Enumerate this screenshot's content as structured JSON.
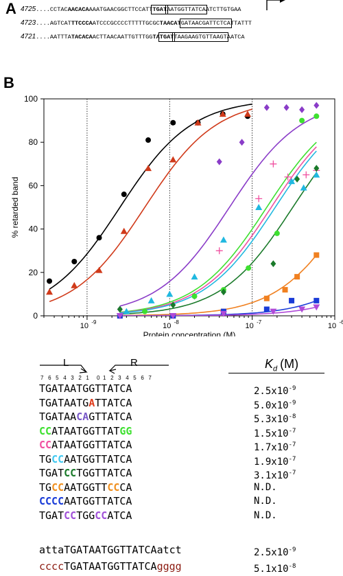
{
  "panel_labels": {
    "a": "A",
    "b": "B"
  },
  "sequences": [
    {
      "name": "4725",
      "dots": "....",
      "parts": [
        {
          "t": "CCTAC"
        },
        {
          "t": "AACACA",
          "bold": true
        },
        {
          "t": "AAATGAACGGCTTCCATT"
        },
        {
          "t": "TGAT",
          "bold": true,
          "box": true
        },
        {
          "t": "AATGGTTATCA",
          "box": true
        },
        {
          "t": "ATCTTGTGAA"
        }
      ]
    },
    {
      "name": "4723",
      "dots": "....",
      "parts": [
        {
          "t": "AGTCAT"
        },
        {
          "t": "TTCCCA",
          "bold": true
        },
        {
          "t": "ATCCCGCCCCTTTTTGCGC"
        },
        {
          "t": "TAACAT",
          "bold": true
        },
        {
          "t": "GATAACGATTCTCA",
          "box": true
        },
        {
          "t": "TTATTT"
        }
      ]
    },
    {
      "name": "4721",
      "dots": "....",
      "parts": [
        {
          "t": "AATTTA"
        },
        {
          "t": "TACACA",
          "bold": true
        },
        {
          "t": "ACTTAACAATTGTTTGG"
        },
        {
          "t": "TA",
          "bold": true
        },
        {
          "t": "TGAT",
          "bold": true,
          "box": true
        },
        {
          "t": "TAAGAAGTGTTAAGT",
          "box": true
        },
        {
          "t": "AATCA"
        }
      ]
    }
  ],
  "chart_data": {
    "type": "scatter",
    "xlabel": "Protein concentration (M)",
    "ylabel": "% retarded band",
    "xscale": "log",
    "xlim": [
      3e-10,
      1e-06
    ],
    "ylim": [
      0,
      100
    ],
    "xticks": [
      "10",
      "10",
      "10",
      "10"
    ],
    "xtick_exps": [
      "-9",
      "-8",
      "-7",
      "-6"
    ],
    "yticks": [
      "0",
      "20",
      "40",
      "60",
      "80",
      "100"
    ],
    "vlines": [
      1e-09,
      1e-08,
      1e-07
    ],
    "series": [
      {
        "color": "#000000",
        "marker": "circle",
        "kd": 2.5e-09,
        "curve": [
          3.5e-10,
          1e-07
        ],
        "x": [
          3.5e-10,
          7e-10,
          1.4e-09,
          2.8e-09,
          5.5e-09,
          1.1e-08,
          2.2e-08,
          4.4e-08,
          8.8e-08
        ],
        "y": [
          16,
          25,
          36,
          56,
          81,
          89,
          89,
          93,
          92
        ]
      },
      {
        "color": "#d03a1a",
        "marker": "triangle",
        "kd": 5e-09,
        "curve": [
          3.5e-10,
          1e-07
        ],
        "x": [
          3.5e-10,
          7e-10,
          1.4e-09,
          2.8e-09,
          5.5e-09,
          1.1e-08,
          2.2e-08,
          4.4e-08,
          8.8e-08
        ],
        "y": [
          11,
          14,
          21,
          39,
          68,
          72,
          89,
          93,
          93
        ]
      },
      {
        "color": "#8a3cc8",
        "marker": "diamond",
        "kd": 5.3e-08,
        "curve": [
          2.5e-09,
          6e-07
        ],
        "x": [
          2.5e-09,
          2e-08,
          4e-08,
          7.5e-08,
          1.5e-07,
          2.6e-07,
          4e-07,
          6e-07
        ],
        "y": [
          3,
          9,
          71,
          80,
          96,
          96,
          95,
          97
        ]
      },
      {
        "color": "#3ee030",
        "marker": "circle",
        "kd": 1.5e-07,
        "curve": [
          2.5e-09,
          6e-07
        ],
        "x": [
          5e-09,
          2e-08,
          4.5e-08,
          9e-08,
          2e-07,
          4e-07,
          6e-07
        ],
        "y": [
          2,
          9,
          12,
          22,
          38,
          90,
          92
        ]
      },
      {
        "color": "#f050a0",
        "marker": "plus",
        "kd": 1.7e-07,
        "curve": [
          2.5e-09,
          6e-07
        ],
        "x": [
          4e-08,
          1.2e-07,
          1.8e-07,
          2.7e-07,
          4.5e-07,
          6e-07
        ],
        "y": [
          30,
          54,
          70,
          64,
          65,
          67
        ]
      },
      {
        "color": "#20b8e0",
        "marker": "triangle",
        "kd": 1.9e-07,
        "curve": [
          2.5e-09,
          6e-07
        ],
        "x": [
          3e-09,
          6e-09,
          1e-08,
          2e-08,
          4.5e-08,
          1.2e-07,
          3e-07,
          4.2e-07,
          6e-07
        ],
        "y": [
          2,
          7,
          10,
          18,
          35,
          50,
          62,
          59,
          65
        ]
      },
      {
        "color": "#1a7a2a",
        "marker": "diamond",
        "kd": 3.1e-07,
        "curve": [
          2.5e-09,
          6e-07
        ],
        "x": [
          2.5e-09,
          1.1e-08,
          4.5e-08,
          1.8e-07,
          3.5e-07,
          6e-07
        ],
        "y": [
          3,
          5,
          11,
          24,
          63,
          68
        ]
      },
      {
        "color": "#f08020",
        "marker": "square",
        "kd": null,
        "curve": [
          2.5e-09,
          6e-07
        ],
        "x": [
          2.5e-09,
          1.1e-08,
          4.5e-08,
          1.5e-07,
          2.5e-07,
          3.5e-07,
          6e-07
        ],
        "y": [
          0,
          0,
          2,
          8,
          12,
          18,
          28
        ]
      },
      {
        "color": "#1a3cd8",
        "marker": "square",
        "kd": null,
        "curve": [
          2.5e-09,
          6e-07
        ],
        "x": [
          2.5e-09,
          1.1e-08,
          4.5e-08,
          1.5e-07,
          3e-07,
          6e-07
        ],
        "y": [
          0,
          0,
          2,
          3,
          7,
          7
        ]
      },
      {
        "color": "#b04ad8",
        "marker": "triangle-down",
        "kd": null,
        "curve": [
          2.5e-09,
          6e-07
        ],
        "x": [
          2.5e-09,
          1.1e-08,
          4.5e-08,
          1.8e-07,
          4e-07,
          6e-07
        ],
        "y": [
          0,
          0,
          1,
          2,
          3,
          4
        ]
      }
    ]
  },
  "table": {
    "left_label": "L",
    "right_label": "R",
    "left_positions": "7 6 5 4 3 2 1",
    "zero": "0",
    "right_positions": "1 2 3 4 5 6 7",
    "kd_header_k": "K",
    "kd_header_d": "d",
    "kd_header_unit": "(M)",
    "rows": [
      {
        "seq": [
          {
            "t": "TGATAATGGTTATCA"
          }
        ],
        "kd_mant": "2.5x10",
        "kd_exp": "-9"
      },
      {
        "seq": [
          {
            "t": "TGATAATG"
          },
          {
            "t": "A",
            "c": "#e03a1a"
          },
          {
            "t": "TTATCA"
          }
        ],
        "kd_mant": "5.0x10",
        "kd_exp": "-9"
      },
      {
        "seq": [
          {
            "t": "TGATAA"
          },
          {
            "t": "CA",
            "c": "#7858c8"
          },
          {
            "t": "GTTATCA"
          }
        ],
        "kd_mant": "5.3x10",
        "kd_exp": "-8"
      },
      {
        "seq": [
          {
            "t": "CC",
            "c": "#3ee030"
          },
          {
            "t": "ATAATGGTTAT"
          },
          {
            "t": "GG",
            "c": "#3ee030"
          }
        ],
        "kd_mant": "1.5x10",
        "kd_exp": "-7"
      },
      {
        "seq": [
          {
            "t": "CC",
            "c": "#f050a0"
          },
          {
            "t": "ATAATGGTTATCA"
          }
        ],
        "kd_mant": "1.7x10",
        "kd_exp": "-7"
      },
      {
        "seq": [
          {
            "t": "TG"
          },
          {
            "t": "CC",
            "c": "#40c8f0"
          },
          {
            "t": "AATGGTTATCA"
          }
        ],
        "kd_mant": "1.9x10",
        "kd_exp": "-7"
      },
      {
        "seq": [
          {
            "t": "TGAT"
          },
          {
            "t": "CC",
            "c": "#1a7a2a"
          },
          {
            "t": "TGGTTATCA"
          }
        ],
        "kd_mant": "3.1x10",
        "kd_exp": "-7"
      },
      {
        "seq": [
          {
            "t": "TG"
          },
          {
            "t": "CC",
            "c": "#f09020"
          },
          {
            "t": "AATGGTT"
          },
          {
            "t": "CC",
            "c": "#f09020"
          },
          {
            "t": "CA"
          }
        ],
        "kd_mant": "N.D.",
        "kd_exp": ""
      },
      {
        "seq": [
          {
            "t": "CCCC",
            "c": "#1a3cd8"
          },
          {
            "t": "AATGGTTATCA"
          }
        ],
        "kd_mant": "N.D.",
        "kd_exp": ""
      },
      {
        "seq": [
          {
            "t": "TGAT"
          },
          {
            "t": "CC",
            "c": "#a050d8"
          },
          {
            "t": "TGG"
          },
          {
            "t": "CC",
            "c": "#a050d8"
          },
          {
            "t": "ATCA"
          }
        ],
        "kd_mant": "N.D.",
        "kd_exp": ""
      }
    ],
    "extra_rows": [
      {
        "seq": [
          {
            "t": "atta",
            "plain": true
          },
          {
            "t": "TGATAATGGTTATCA"
          },
          {
            "t": "atct",
            "plain": true
          }
        ],
        "kd_mant": "2.5x10",
        "kd_exp": "-9"
      },
      {
        "seq": [
          {
            "t": "cccc",
            "plain": true,
            "c": "#8b1a10"
          },
          {
            "t": "TGATAATGGTTATCA"
          },
          {
            "t": "gggg",
            "plain": true,
            "c": "#8b1a10"
          }
        ],
        "kd_mant": "5.1x10",
        "kd_exp": "-8"
      }
    ]
  }
}
